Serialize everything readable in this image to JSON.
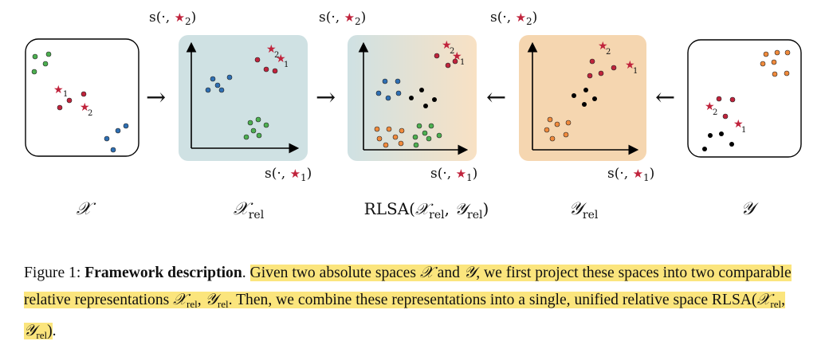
{
  "panels": [
    {
      "label": "𝒳",
      "sub": ""
    },
    {
      "label": "𝒳",
      "sub": "rel"
    },
    {
      "pre": "RLSA(",
      "a": "𝒳",
      "asub": "rel",
      "mid": ", ",
      "b": "𝒴",
      "bsub": "rel",
      "post": ")"
    },
    {
      "label": "𝒴",
      "sub": "rel"
    },
    {
      "label": "𝒴",
      "sub": ""
    }
  ],
  "axis_labels": {
    "prefix": "s(·, ",
    "suffix": ")",
    "star": "★",
    "idx1": "1",
    "idx2": "2"
  },
  "arrows": {
    "right": "→",
    "left": "←"
  },
  "star_labels": {
    "one": "1",
    "two": "2"
  },
  "colors": {
    "green": "#4caf50",
    "red": "#c0233c",
    "blue": "#2e6fb3",
    "orange": "#f08a3c",
    "black": "#000000",
    "panel_blue": "#cfe1e3",
    "panel_orange": "#f5d6b0",
    "highlight": "#fbe57d"
  },
  "caption": {
    "fig_label": "Figure 1: ",
    "bold": "Framework description",
    "period": ". ",
    "p1": "Given two absolute spaces ",
    "X": "𝒳",
    "and": " and ",
    "Y": "𝒴",
    "p2": ", we first project these spaces into two comparable relative representations ",
    "Xrel": "𝒳",
    "rel1": "rel",
    "comma": ", ",
    "Yrel": "𝒴",
    "rel2": "rel",
    "p3": ". Then, we combine these representations into a single, unified relative space RLSA(",
    "X2": "𝒳",
    "rel3": "rel",
    "comma2": ", ",
    "Y2": "𝒴",
    "rel4": "rel",
    "p4": ")",
    "end": "."
  }
}
